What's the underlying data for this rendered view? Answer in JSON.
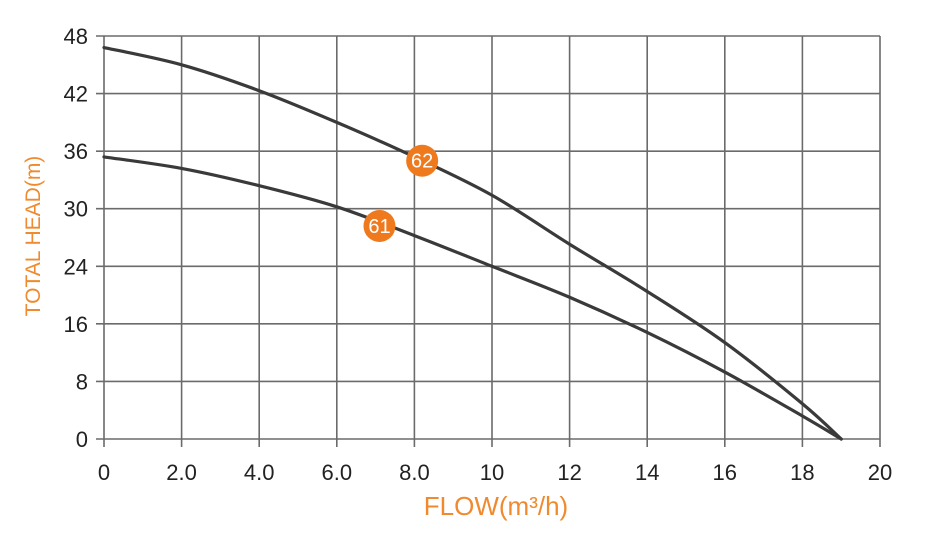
{
  "chart_data": {
    "type": "line",
    "xlabel": "FLOW(m³/h)",
    "ylabel": "TOTAL HEAD(m)",
    "x_ticks": [
      "0",
      "2.0",
      "4.0",
      "6.0",
      "8.0",
      "10",
      "12",
      "14",
      "16",
      "18",
      "20"
    ],
    "y_ticks": [
      "0",
      "8",
      "16",
      "24",
      "30",
      "36",
      "42",
      "48"
    ],
    "xlim": [
      0,
      20
    ],
    "grid": true,
    "series": [
      {
        "name": "62",
        "x": [
          0,
          2,
          4,
          6,
          8,
          10,
          12,
          14,
          16,
          18,
          19
        ],
        "y": [
          46.8,
          45.0,
          42.3,
          39.0,
          35.4,
          31.4,
          26.3,
          20.5,
          13.4,
          4.9,
          0
        ]
      },
      {
        "name": "61",
        "x": [
          0,
          2,
          4,
          6,
          8,
          10,
          12,
          14,
          16,
          18,
          19
        ],
        "y": [
          35.4,
          34.2,
          32.4,
          30.2,
          27.2,
          24.0,
          19.7,
          14.8,
          9.3,
          3.2,
          0
        ]
      }
    ],
    "markers": [
      {
        "label": "62",
        "x": 8.2,
        "y": 35.0
      },
      {
        "label": "61",
        "x": 7.1,
        "y": 28.2
      }
    ],
    "colors": {
      "curve": "#3a3a3a",
      "grid": "#6b6b6b",
      "marker": "#ef7a1e",
      "axis_title": "#ef8a2e"
    }
  }
}
